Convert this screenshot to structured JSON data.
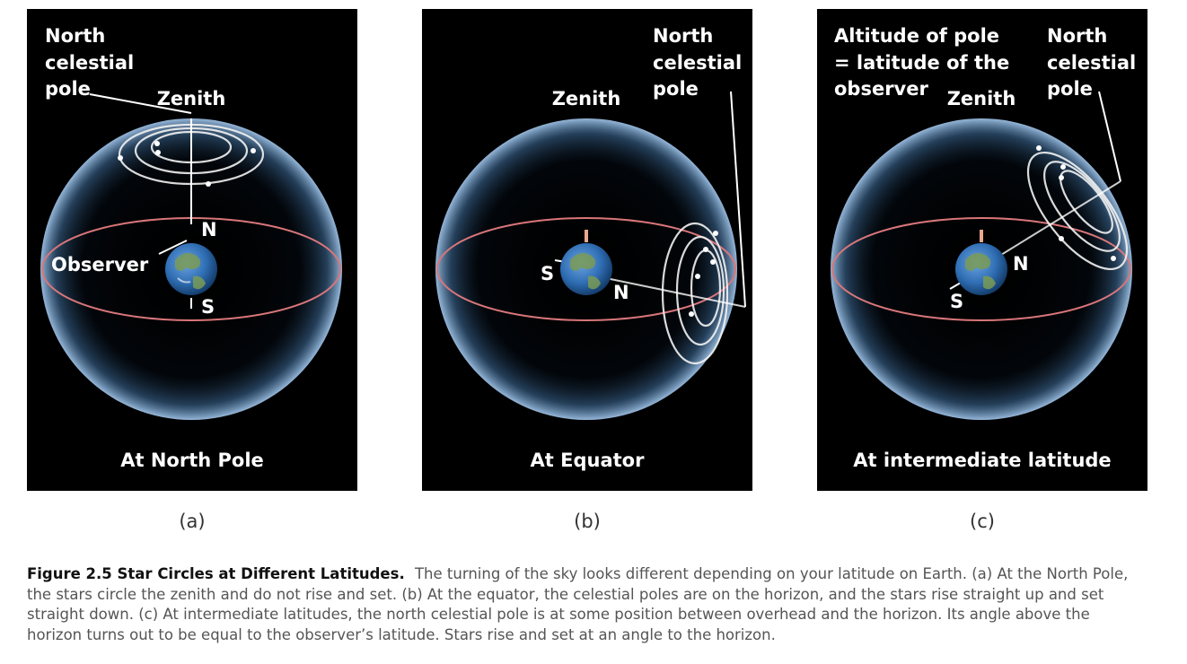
{
  "panels": {
    "a": {
      "letter": "(a)",
      "title": "At North Pole",
      "labels": {
        "pole_line1": "North",
        "pole_line2": "celestial",
        "pole_line3": "pole",
        "zenith": "Zenith",
        "observer": "Observer",
        "n": "N",
        "s": "S"
      }
    },
    "b": {
      "letter": "(b)",
      "title": "At Equator",
      "labels": {
        "pole_line1": "North",
        "pole_line2": "celestial",
        "pole_line3": "pole",
        "zenith": "Zenith",
        "n": "N",
        "s": "S"
      }
    },
    "c": {
      "letter": "(c)",
      "title": "At intermediate latitude",
      "labels": {
        "alt_line1": "Altitude of pole",
        "alt_line2": "= latitude of the",
        "alt_line3": "observer",
        "pole_line1": "North",
        "pole_line2": "celestial",
        "pole_line3": "pole",
        "zenith": "Zenith",
        "n": "N",
        "s": "S"
      }
    }
  },
  "caption": {
    "title": "Figure 2.5 Star Circles at Different Latitudes.",
    "text": "The turning of the sky looks different depending on your latitude on Earth. (a) At the North Pole, the stars circle the zenith and do not rise and set. (b) At the equator, the celestial poles are on the horizon, and the stars rise straight up and set straight down. (c) At intermediate latitudes, the north celestial pole is at some position between overhead and the horizon. Its angle above the horizon turns out to be equal to the observer’s latitude. Stars rise and set at an angle to the horizon."
  },
  "colors": {
    "background": "#000000",
    "sphere_edge": "#8fb3d9",
    "horizon": "#d9767a",
    "star_path": "#f2f2f2",
    "earth_ocean": "#2f6db3",
    "earth_land": "#7a9b55"
  }
}
